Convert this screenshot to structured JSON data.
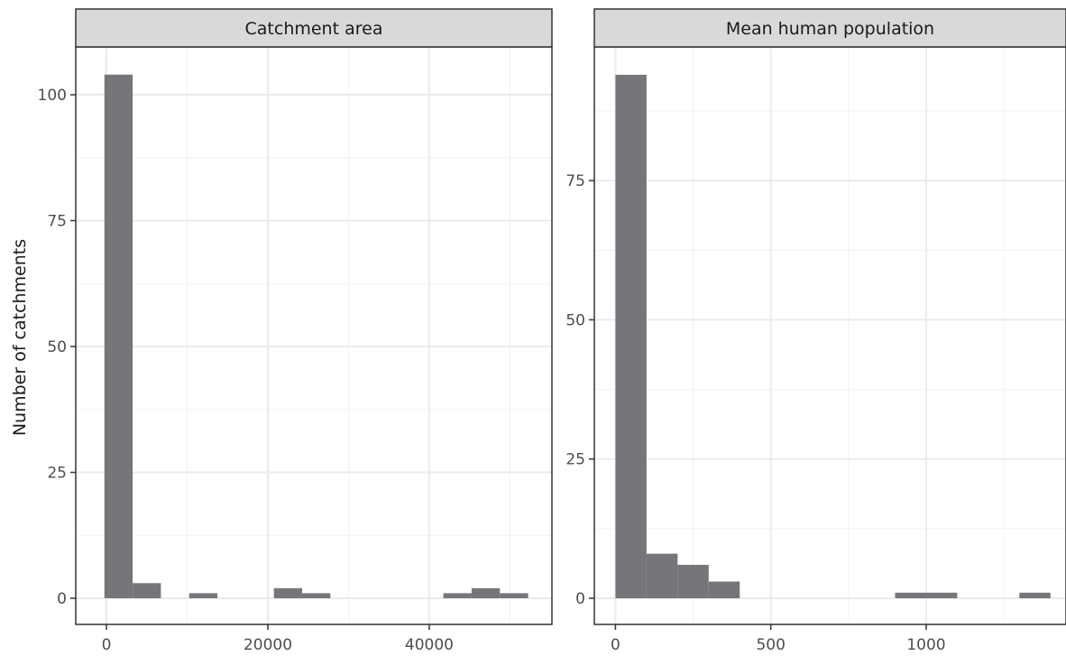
{
  "chart_data": {
    "type": "bar",
    "ylabel": "Number of catchments",
    "xlabel": "",
    "grid": true,
    "legend": "none",
    "bar_color": "#75767a",
    "panels": [
      {
        "title": "Catchment area",
        "xlim": [
          -3800,
          55200
        ],
        "ylim": [
          -5.2,
          109.5
        ],
        "x_ticks": [
          0,
          20000,
          40000
        ],
        "y_ticks": [
          0,
          25,
          50,
          75,
          100
        ],
        "bins": [
          {
            "x0": -250,
            "x1": 3250,
            "count": 104
          },
          {
            "x0": 3250,
            "x1": 6750,
            "count": 3
          },
          {
            "x0": 10250,
            "x1": 13750,
            "count": 1
          },
          {
            "x0": 20750,
            "x1": 24250,
            "count": 2
          },
          {
            "x0": 24250,
            "x1": 27750,
            "count": 1
          },
          {
            "x0": 41750,
            "x1": 45250,
            "count": 1
          },
          {
            "x0": 45250,
            "x1": 48750,
            "count": 2
          },
          {
            "x0": 48750,
            "x1": 52250,
            "count": 1
          }
        ]
      },
      {
        "title": "Mean human population",
        "xlim": [
          -68,
          1450
        ],
        "ylim": [
          -4.7,
          99
        ],
        "x_ticks": [
          0,
          500,
          1000
        ],
        "y_ticks": [
          0,
          25,
          50,
          75
        ],
        "bins": [
          {
            "x0": 0,
            "x1": 100,
            "count": 94
          },
          {
            "x0": 100,
            "x1": 200,
            "count": 8
          },
          {
            "x0": 200,
            "x1": 300,
            "count": 6
          },
          {
            "x0": 300,
            "x1": 400,
            "count": 3
          },
          {
            "x0": 900,
            "x1": 1000,
            "count": 1
          },
          {
            "x0": 1000,
            "x1": 1100,
            "count": 1
          },
          {
            "x0": 1300,
            "x1": 1400,
            "count": 1
          }
        ]
      }
    ]
  }
}
